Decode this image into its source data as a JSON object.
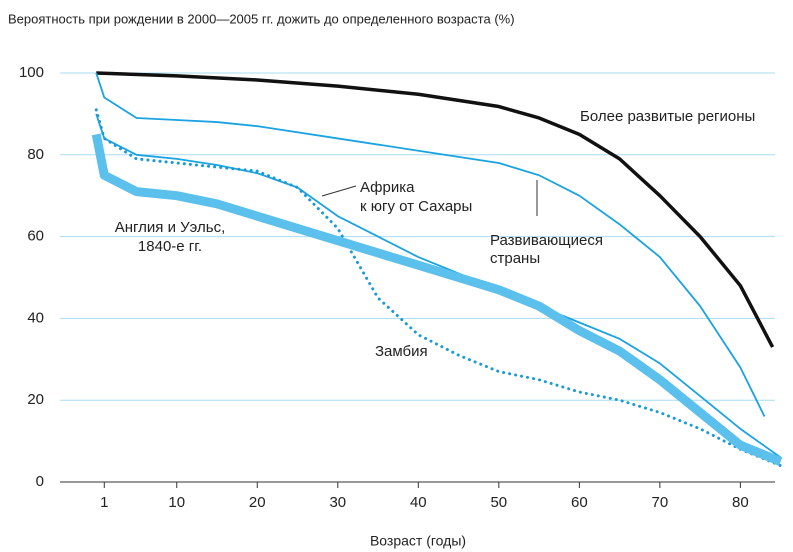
{
  "chart_data": {
    "type": "line",
    "title": "Вероятность при рождении в 2000—2005 гг. дожить до определенного возраста  (%)",
    "x_label": "Возраст (годы)",
    "xlim": [
      -4.5,
      84.3
    ],
    "xticks": [
      1,
      10,
      20,
      30,
      40,
      50,
      60,
      70,
      80
    ],
    "ylim": [
      0,
      100
    ],
    "yticks": [
      0,
      20,
      40,
      60,
      80,
      100
    ],
    "grid": true,
    "series": [
      {
        "name": "Более развитые регионы",
        "color": "#111111",
        "width": 3.5,
        "dash": false,
        "x": [
          0,
          10,
          20,
          30,
          40,
          50,
          55,
          60,
          65,
          70,
          75,
          80,
          84
        ],
        "values": [
          100,
          99.3,
          98.3,
          96.8,
          94.8,
          91.8,
          89,
          85,
          79,
          70,
          60,
          48,
          33
        ]
      },
      {
        "name": "Развивающиеся страны",
        "color": "#1aa3e0",
        "width": 1.8,
        "dash": false,
        "x": [
          0,
          1,
          5,
          10,
          15,
          20,
          30,
          40,
          50,
          55,
          60,
          65,
          70,
          75,
          80,
          83
        ],
        "values": [
          100,
          94,
          89,
          88.5,
          88,
          87,
          84,
          81,
          78,
          75,
          70,
          63,
          55,
          43,
          28,
          16
        ]
      },
      {
        "name": "Африка к югу от Сахары",
        "color": "#1aa3e0",
        "width": 1.8,
        "dash": false,
        "x": [
          0,
          1,
          5,
          10,
          15,
          20,
          25,
          30,
          35,
          40,
          45,
          50,
          55,
          60,
          65,
          70,
          75,
          80,
          85
        ],
        "values": [
          90,
          84,
          80,
          79,
          77.5,
          75.5,
          72,
          65,
          60,
          55,
          51,
          47,
          43,
          39,
          35,
          29,
          21,
          13,
          6
        ]
      },
      {
        "name": "Замбия",
        "color": "#1a9ad6",
        "width": 3,
        "dash": true,
        "x": [
          0,
          1,
          5,
          10,
          15,
          20,
          25,
          30,
          35,
          40,
          45,
          50,
          55,
          60,
          65,
          70,
          75,
          80,
          85
        ],
        "values": [
          91,
          84,
          79,
          78,
          77,
          76,
          72,
          62,
          45,
          36,
          31,
          27,
          25,
          22,
          20,
          17,
          13,
          8,
          4
        ]
      },
      {
        "name": "Англия и Уэльс, 1840-е гг.",
        "color": "#5bc0eb",
        "width": 9,
        "dash": false,
        "x": [
          0,
          1,
          5,
          10,
          15,
          20,
          25,
          30,
          35,
          40,
          45,
          50,
          55,
          60,
          65,
          70,
          75,
          80,
          85
        ],
        "values": [
          85,
          75,
          71,
          70,
          68,
          65,
          62,
          59,
          56,
          53,
          50,
          47,
          43,
          37,
          32,
          25,
          17,
          9,
          5
        ]
      }
    ],
    "annotations": [
      "Более развитые регионы",
      "Африка",
      "к югу от Сахары",
      "Развивающиеся",
      "страны",
      "Англия и Уэльс,",
      "1840-е гг.",
      "Замбия"
    ]
  }
}
